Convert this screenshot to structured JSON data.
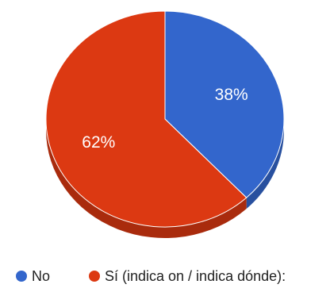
{
  "chart_data": {
    "type": "pie",
    "style": "3d",
    "title": "",
    "slices": [
      {
        "label": "No",
        "value": 38,
        "display": "38%",
        "color": "#3366cc",
        "side_color": "#28509f"
      },
      {
        "label": "Sí (indica on / indica dónde):",
        "value": 62,
        "display": "62%",
        "color": "#dc3912",
        "side_color": "#a92b0d"
      }
    ],
    "legend": {
      "position": "bottom",
      "entries": [
        {
          "label": "No",
          "color": "#3366cc"
        },
        {
          "label": "Sí (indica on / indica dónde):",
          "color": "#dc3912"
        }
      ]
    }
  }
}
